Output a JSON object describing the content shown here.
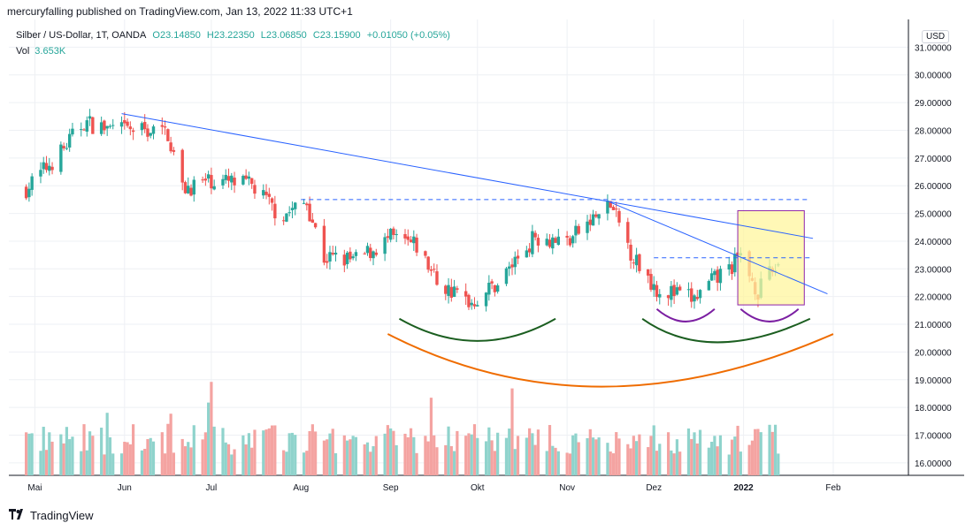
{
  "header": "mercuryfalling published on TradingView.com, Jan 13, 2022 11:33 UTC+1",
  "legend": {
    "symbol": "Silber / US-Dollar, 1T, OANDA",
    "open": "O23.14850",
    "high": "H23.22350",
    "low": "L23.06850",
    "close": "C23.15900",
    "change": "+0.01050 (+0.05%)",
    "vol_label": "Vol",
    "vol_value": "3.653K"
  },
  "currency": "USD",
  "brand": "TradingView",
  "colors": {
    "up": "#26a69a",
    "down": "#ef5350",
    "up_vol": "#8fd3cc",
    "down_vol": "#f4a3a1",
    "trendline": "#2962ff",
    "green_arc": "#1b5e20",
    "orange_arc": "#ef6c00",
    "purple_arc": "#7b1fa2",
    "highlight_fill": "#fff59d",
    "highlight_stroke": "#8e24aa"
  },
  "chart_data": {
    "type": "candlestick",
    "ylim": [
      15.55,
      32.0
    ],
    "y_ticks": [
      "16.00000",
      "17.00000",
      "18.00000",
      "19.00000",
      "20.00000",
      "21.00000",
      "22.00000",
      "23.00000",
      "24.00000",
      "25.00000",
      "26.00000",
      "27.00000",
      "28.00000",
      "29.00000",
      "30.00000",
      "31.00000"
    ],
    "x_ticks": [
      "Mai",
      "Jun",
      "Jul",
      "Aug",
      "Sep",
      "Okt",
      "Nov",
      "Dez",
      "2022",
      "Feb"
    ],
    "approx_close_path": [
      [
        "2021-04-28",
        25.9
      ],
      [
        "2021-05-10",
        27.2
      ],
      [
        "2021-05-18",
        28.3
      ],
      [
        "2021-05-28",
        28.0
      ],
      [
        "2021-06-02",
        28.0
      ],
      [
        "2021-06-10",
        28.0
      ],
      [
        "2021-06-16",
        27.9
      ],
      [
        "2021-06-21",
        25.9
      ],
      [
        "2021-07-01",
        26.2
      ],
      [
        "2021-07-15",
        26.0
      ],
      [
        "2021-07-25",
        24.9
      ],
      [
        "2021-08-03",
        25.4
      ],
      [
        "2021-08-09",
        23.4
      ],
      [
        "2021-08-20",
        23.3
      ],
      [
        "2021-09-01",
        24.1
      ],
      [
        "2021-09-10",
        23.8
      ],
      [
        "2021-09-18",
        22.4
      ],
      [
        "2021-09-29",
        21.8
      ],
      [
        "2021-10-08",
        22.5
      ],
      [
        "2021-10-21",
        24.2
      ],
      [
        "2021-11-01",
        24.0
      ],
      [
        "2021-11-16",
        25.3
      ],
      [
        "2021-11-24",
        23.4
      ],
      [
        "2021-12-02",
        22.3
      ],
      [
        "2021-12-15",
        21.9
      ],
      [
        "2021-12-22",
        22.6
      ],
      [
        "2021-12-31",
        23.4
      ],
      [
        "2022-01-06",
        22.2
      ],
      [
        "2022-01-13",
        23.16
      ]
    ],
    "annotations": {
      "horizontal_levels": [
        25.5,
        23.4
      ],
      "highlight_box": {
        "x": [
          "2021-12-30",
          "2022-01-22"
        ],
        "y": [
          21.7,
          25.1
        ]
      },
      "trendlines": [
        {
          "x": [
            "2021-05-31",
            "2022-01-25"
          ],
          "y": [
            28.6,
            24.1
          ]
        },
        {
          "x": [
            "2021-11-16",
            "2022-01-30"
          ],
          "y": [
            25.4,
            22.1
          ]
        }
      ]
    }
  }
}
